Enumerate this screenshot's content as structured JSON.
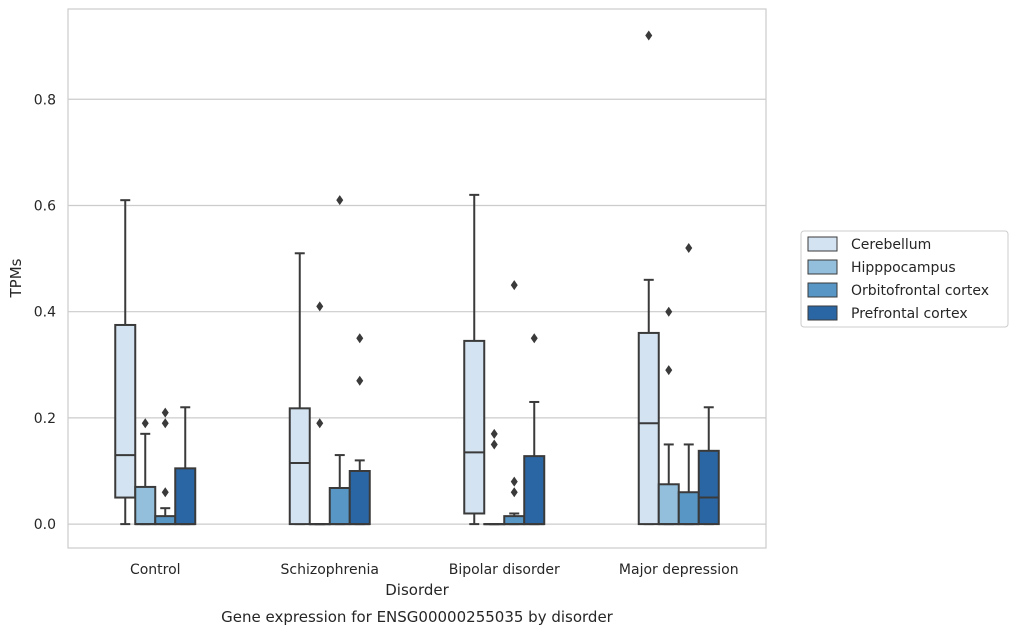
{
  "chart_data": {
    "type": "box",
    "title": "",
    "caption": "Gene expression for ENSG00000255035 by disorder",
    "xlabel": "Disorder",
    "ylabel": "TPMs",
    "ylim": [
      -0.045,
      0.97
    ],
    "yticks": [
      0.0,
      0.2,
      0.4,
      0.6,
      0.8
    ],
    "ytick_labels": [
      "0.0",
      "0.2",
      "0.4",
      "0.6",
      "0.8"
    ],
    "grid": "horizontal",
    "legend_position": "center-right",
    "categories": [
      "Control",
      "Schizophrenia",
      "Bipolar disorder",
      "Major depression"
    ],
    "series": [
      {
        "name": "Cerebellum",
        "color": "#d4e3f1",
        "boxes": [
          {
            "whislo": 0.0,
            "q1": 0.05,
            "med": 0.13,
            "q3": 0.375,
            "whishi": 0.61,
            "fliers": []
          },
          {
            "whislo": 0.0,
            "q1": 0.0,
            "med": 0.115,
            "q3": 0.218,
            "whishi": 0.51,
            "fliers": []
          },
          {
            "whislo": 0.0,
            "q1": 0.02,
            "med": 0.135,
            "q3": 0.345,
            "whishi": 0.62,
            "fliers": []
          },
          {
            "whislo": 0.0,
            "q1": 0.0,
            "med": 0.19,
            "q3": 0.36,
            "whishi": 0.46,
            "fliers": [
              0.92
            ]
          }
        ]
      },
      {
        "name": "Hipppocampus",
        "color": "#93bfdc",
        "boxes": [
          {
            "whislo": 0.0,
            "q1": 0.0,
            "med": 0.0,
            "q3": 0.07,
            "whishi": 0.17,
            "fliers": [
              0.19
            ]
          },
          {
            "whislo": 0.0,
            "q1": 0.0,
            "med": 0.0,
            "q3": 0.0,
            "whishi": 0.0,
            "fliers": [
              0.41,
              0.19
            ]
          },
          {
            "whislo": 0.0,
            "q1": 0.0,
            "med": 0.0,
            "q3": 0.0,
            "whishi": 0.0,
            "fliers": [
              0.17,
              0.15
            ]
          },
          {
            "whislo": 0.0,
            "q1": 0.0,
            "med": 0.0,
            "q3": 0.075,
            "whishi": 0.15,
            "fliers": [
              0.4,
              0.29
            ]
          }
        ]
      },
      {
        "name": "Orbitofrontal cortex",
        "color": "#5796c5",
        "boxes": [
          {
            "whislo": 0.0,
            "q1": 0.0,
            "med": 0.0,
            "q3": 0.015,
            "whishi": 0.03,
            "fliers": [
              0.21,
              0.19,
              0.06
            ]
          },
          {
            "whislo": 0.0,
            "q1": 0.0,
            "med": 0.0,
            "q3": 0.068,
            "whishi": 0.13,
            "fliers": [
              0.61
            ]
          },
          {
            "whislo": 0.0,
            "q1": 0.0,
            "med": 0.0,
            "q3": 0.015,
            "whishi": 0.02,
            "fliers": [
              0.45,
              0.08,
              0.06
            ]
          },
          {
            "whislo": 0.0,
            "q1": 0.0,
            "med": 0.0,
            "q3": 0.06,
            "whishi": 0.15,
            "fliers": [
              0.52
            ]
          }
        ]
      },
      {
        "name": "Prefrontal cortex",
        "color": "#2b66a4",
        "boxes": [
          {
            "whislo": 0.0,
            "q1": 0.0,
            "med": 0.0,
            "q3": 0.105,
            "whishi": 0.22,
            "fliers": []
          },
          {
            "whislo": 0.0,
            "q1": 0.0,
            "med": 0.0,
            "q3": 0.1,
            "whishi": 0.12,
            "fliers": [
              0.35,
              0.27
            ]
          },
          {
            "whislo": 0.0,
            "q1": 0.0,
            "med": 0.0,
            "q3": 0.128,
            "whishi": 0.23,
            "fliers": [
              0.35
            ]
          },
          {
            "whislo": 0.0,
            "q1": 0.0,
            "med": 0.05,
            "q3": 0.138,
            "whishi": 0.22,
            "fliers": []
          }
        ]
      }
    ]
  }
}
